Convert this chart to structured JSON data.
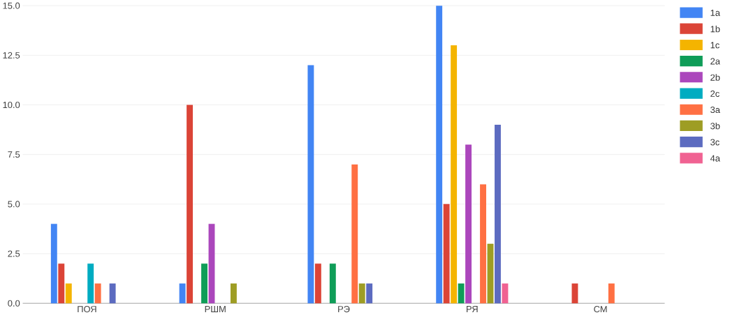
{
  "chart_data": {
    "type": "bar",
    "categories": [
      "ПОЯ",
      "РШМ",
      "РЭ",
      "РЯ",
      "СМ"
    ],
    "series": [
      {
        "name": "1a",
        "color": "#4285f4",
        "values": [
          4,
          1,
          12,
          15,
          0
        ]
      },
      {
        "name": "1b",
        "color": "#db4437",
        "values": [
          2,
          10,
          2,
          5,
          1
        ]
      },
      {
        "name": "1c",
        "color": "#f4b400",
        "values": [
          1,
          0,
          0,
          13,
          0
        ]
      },
      {
        "name": "2a",
        "color": "#0f9d58",
        "values": [
          0,
          2,
          2,
          1,
          0
        ]
      },
      {
        "name": "2b",
        "color": "#ab47bc",
        "values": [
          0,
          4,
          0,
          8,
          0
        ]
      },
      {
        "name": "2c",
        "color": "#00acc1",
        "values": [
          2,
          0,
          0,
          0,
          0
        ]
      },
      {
        "name": "3a",
        "color": "#ff7043",
        "values": [
          1,
          0,
          7,
          6,
          1
        ]
      },
      {
        "name": "3b",
        "color": "#9e9d24",
        "values": [
          0,
          1,
          1,
          3,
          0
        ]
      },
      {
        "name": "3c",
        "color": "#5c6bc0",
        "values": [
          1,
          0,
          1,
          9,
          0
        ]
      },
      {
        "name": "4a",
        "color": "#f06292",
        "values": [
          0,
          0,
          0,
          1,
          0
        ]
      }
    ],
    "ylim": [
      0,
      15
    ],
    "yticks": [
      {
        "value": 0,
        "label": "0.0"
      },
      {
        "value": 2.5,
        "label": "2.5"
      },
      {
        "value": 5,
        "label": "5.0"
      },
      {
        "value": 7.5,
        "label": "7.5"
      },
      {
        "value": 10,
        "label": "10.0"
      },
      {
        "value": 12.5,
        "label": "12.5"
      },
      {
        "value": 15,
        "label": "15.0"
      }
    ],
    "grid": "y",
    "legend": "right"
  }
}
